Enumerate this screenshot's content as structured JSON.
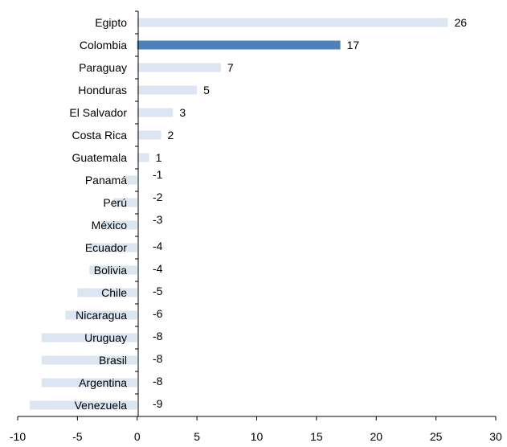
{
  "chart_data": {
    "type": "bar",
    "orientation": "horizontal",
    "categories": [
      "Egipto",
      "Colombia",
      "Paraguay",
      "Honduras",
      "El Salvador",
      "Costa Rica",
      "Guatemala",
      "Panamá",
      "Perú",
      "México",
      "Ecuador",
      "Bolivia",
      "Chile",
      "Nicaragua",
      "Uruguay",
      "Brasil",
      "Argentina",
      "Venezuela"
    ],
    "values": [
      26,
      17,
      7,
      5,
      3,
      2,
      1,
      -1,
      -2,
      -3,
      -4,
      -4,
      -5,
      -6,
      -8,
      -8,
      -8,
      -9
    ],
    "value_labels": [
      "26",
      "17",
      "7",
      "5",
      "3",
      "2",
      "1",
      "-1",
      "-2",
      "-3",
      "-4",
      "-4",
      "-5",
      "-6",
      "-8",
      "-8",
      "-8",
      "-9"
    ],
    "highlight_category": "Colombia",
    "xlim": [
      -10,
      30
    ],
    "xticks": [
      -10,
      -5,
      0,
      5,
      10,
      15,
      20,
      25,
      30
    ],
    "xtick_labels": [
      "-10",
      "-5",
      "0",
      "5",
      "10",
      "15",
      "20",
      "25",
      "30"
    ],
    "title": "",
    "xlabel": "",
    "ylabel": "",
    "grid": false,
    "legend": "none",
    "colors": {
      "bar": "#dce6f2",
      "highlight": "#4f81bd",
      "axis": "#000000",
      "text": "#000000"
    }
  }
}
